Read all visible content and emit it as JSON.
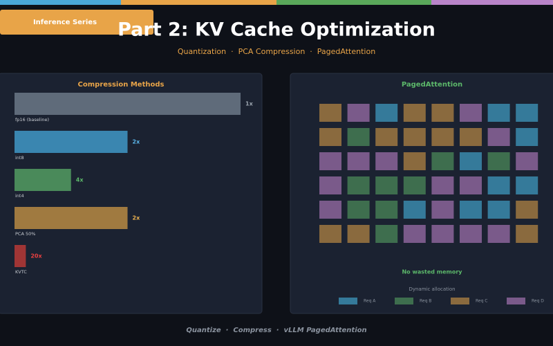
{
  "header": {
    "badge": "Inference Series",
    "title": "Part 2: KV Cache Optimization",
    "subtitle": "Quantization  ·  PCA Compression  ·  PagedAttention"
  },
  "chart_data": {
    "type": "bar",
    "title": "Compression Methods",
    "categories": [
      "fp16 (baseline)",
      "int8",
      "int4",
      "PCA 50%",
      "KVTC"
    ],
    "values": [
      1,
      2,
      4,
      2,
      20
    ],
    "value_labels": [
      "1x",
      "2x",
      "4x",
      "2x",
      "20x"
    ],
    "colors": [
      "#5f6b7a",
      "#3a86b0",
      "#4a8a5a",
      "#a07a40",
      "#a03535"
    ],
    "label_colors": [
      "#9aa3ad",
      "#5ab4e8",
      "#5cb86a",
      "#e8b050",
      "#e84040"
    ]
  },
  "paged": {
    "title": "PagedAttention",
    "note": "No wasted memory",
    "caption": "Dynamic allocation",
    "legend": [
      {
        "name": "Req A",
        "color": "#357a9a"
      },
      {
        "name": "Req B",
        "color": "#3e6e4e"
      },
      {
        "name": "Req C",
        "color": "#8a6a3e"
      },
      {
        "name": "Req D",
        "color": "#7a5a8a"
      }
    ],
    "blocks": [
      [
        "#8a6a3e",
        "#7a5a8a",
        "#357a9a",
        "#8a6a3e",
        "#8a6a3e",
        "#7a5a8a",
        "#357a9a",
        "#357a9a"
      ],
      [
        "#8a6a3e",
        "#3e6e4e",
        "#8a6a3e",
        "#8a6a3e",
        "#8a6a3e",
        "#8a6a3e",
        "#7a5a8a",
        "#357a9a"
      ],
      [
        "#7a5a8a",
        "#7a5a8a",
        "#7a5a8a",
        "#8a6a3e",
        "#3e6e4e",
        "#357a9a",
        "#3e6e4e",
        "#7a5a8a"
      ],
      [
        "#7a5a8a",
        "#3e6e4e",
        "#3e6e4e",
        "#3e6e4e",
        "#7a5a8a",
        "#7a5a8a",
        "#357a9a",
        "#357a9a"
      ],
      [
        "#7a5a8a",
        "#3e6e4e",
        "#3e6e4e",
        "#357a9a",
        "#7a5a8a",
        "#357a9a",
        "#357a9a",
        "#8a6a3e"
      ],
      [
        "#8a6a3e",
        "#8a6a3e",
        "#3e6e4e",
        "#7a5a8a",
        "#7a5a8a",
        "#7a5a8a",
        "#7a5a8a",
        "#8a6a3e"
      ]
    ]
  },
  "footer": "Quantize  ·  Compress  ·  vLLM PagedAttention"
}
